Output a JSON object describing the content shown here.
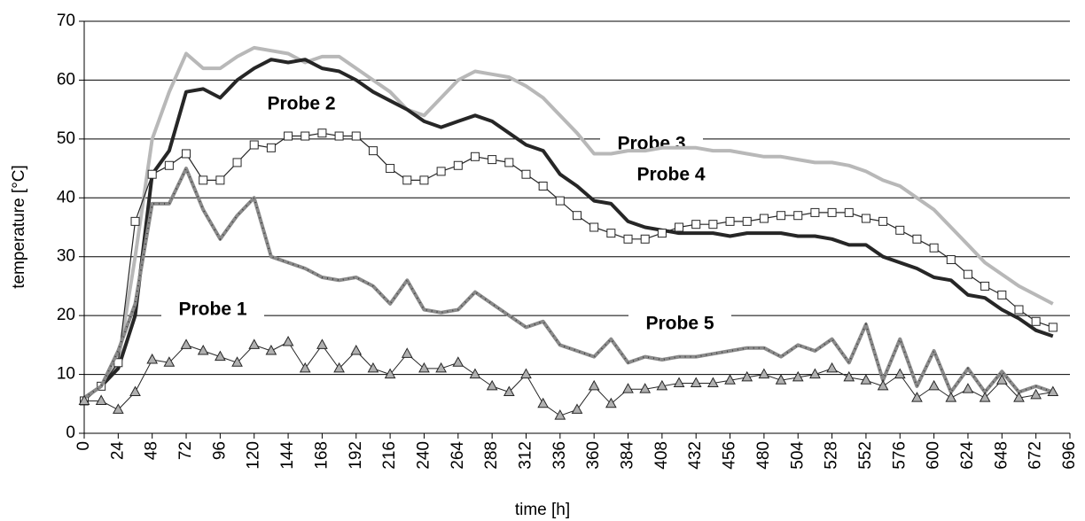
{
  "chart_data": {
    "type": "line",
    "xlabel": "time [h]",
    "ylabel": "temperature [°C]",
    "x": [
      0,
      12,
      24,
      36,
      48,
      60,
      72,
      84,
      96,
      108,
      120,
      132,
      144,
      156,
      168,
      180,
      192,
      204,
      216,
      228,
      240,
      252,
      264,
      276,
      288,
      300,
      312,
      324,
      336,
      348,
      360,
      372,
      384,
      396,
      408,
      420,
      432,
      444,
      456,
      468,
      480,
      492,
      504,
      516,
      528,
      540,
      552,
      564,
      576,
      588,
      600,
      612,
      624,
      636,
      648,
      660,
      672,
      684
    ],
    "series": [
      {
        "name": "Probe 1",
        "color": "#8a8a8a",
        "marker": null,
        "values": [
          6,
          8,
          14,
          22,
          39,
          39,
          45,
          38,
          33,
          37,
          40,
          30,
          29,
          28,
          26.5,
          26,
          26.5,
          25,
          22,
          26,
          21,
          20.5,
          21,
          24,
          22,
          20,
          18,
          19,
          15,
          14,
          13,
          16,
          12,
          13,
          12.5,
          13,
          13,
          13.5,
          14,
          14.5,
          14.5,
          13,
          15,
          14,
          16,
          12,
          18.5,
          9,
          16,
          8,
          14,
          7,
          11,
          7,
          10.5,
          7,
          8,
          7
        ]
      },
      {
        "name": "Probe 2",
        "color": "#262626",
        "marker": null,
        "values": [
          6,
          8,
          11,
          20,
          44,
          48,
          58,
          58.5,
          57,
          60,
          62,
          63.5,
          63,
          63.5,
          62,
          61.5,
          60,
          58,
          56.5,
          55,
          53,
          52,
          53,
          54,
          53,
          51,
          49,
          48,
          44,
          42,
          39.5,
          39,
          36,
          35,
          34.5,
          34,
          34,
          34,
          33.5,
          34,
          34,
          34,
          33.5,
          33.5,
          33,
          32,
          32,
          30,
          29,
          28,
          26.5,
          26,
          23.5,
          23,
          21,
          19.5,
          17.5,
          16.5
        ]
      },
      {
        "name": "Probe 3",
        "color": "#b8b8b8",
        "marker": null,
        "values": [
          6,
          8,
          12,
          30,
          50,
          58,
          64.5,
          62,
          62,
          64,
          65.5,
          65,
          64.5,
          63,
          64,
          64,
          62,
          60,
          58,
          55,
          54,
          57,
          60,
          61.5,
          61,
          60.5,
          59,
          57,
          54,
          51,
          47.5,
          47.5,
          48,
          48,
          48.5,
          48.5,
          48.5,
          48,
          48,
          47.5,
          47,
          47,
          46.5,
          46,
          46,
          45.5,
          44.5,
          43,
          42,
          40,
          38,
          35,
          32,
          29,
          27,
          25,
          23.5,
          22
        ]
      },
      {
        "name": "Probe 4",
        "color": "#262626",
        "marker": "square",
        "values": [
          5.5,
          8,
          12,
          36,
          44,
          45.5,
          47.5,
          43,
          43,
          46,
          49,
          48.5,
          50.5,
          50.5,
          51,
          50.5,
          50.5,
          48,
          45,
          43,
          43,
          44.5,
          45.5,
          47,
          46.5,
          46,
          44,
          42,
          39.5,
          37,
          35,
          34,
          33,
          33,
          34,
          35,
          35.5,
          35.5,
          36,
          36,
          36.5,
          37,
          37,
          37.5,
          37.5,
          37.5,
          36.5,
          36,
          34.5,
          33,
          31.5,
          29.5,
          27,
          25,
          23.5,
          21,
          19,
          18
        ]
      },
      {
        "name": "Probe 5",
        "color": "#262626",
        "marker": "triangle",
        "values": [
          5.5,
          5.5,
          4,
          7,
          12.5,
          12,
          15,
          14,
          13,
          12,
          15,
          14,
          15.5,
          11,
          15,
          11,
          14,
          11,
          10,
          13.5,
          11,
          11,
          12,
          10,
          8,
          7,
          10,
          5,
          3,
          4,
          8,
          5,
          7.5,
          7.5,
          8,
          8.5,
          8.5,
          8.5,
          9,
          9.5,
          10,
          9,
          9.5,
          10,
          11,
          9.5,
          9,
          8,
          10,
          6,
          8,
          6,
          7.5,
          6,
          9,
          6,
          6.5,
          7
        ]
      }
    ],
    "xlim": [
      0,
      696
    ],
    "xticks": [
      0,
      24,
      48,
      72,
      96,
      120,
      144,
      168,
      192,
      216,
      240,
      264,
      288,
      312,
      336,
      360,
      384,
      408,
      432,
      456,
      480,
      504,
      528,
      552,
      576,
      600,
      624,
      648,
      672,
      696
    ],
    "ylim": [
      0,
      70
    ],
    "yticks": [
      0,
      10,
      20,
      30,
      40,
      50,
      60,
      70
    ],
    "grid": true
  }
}
